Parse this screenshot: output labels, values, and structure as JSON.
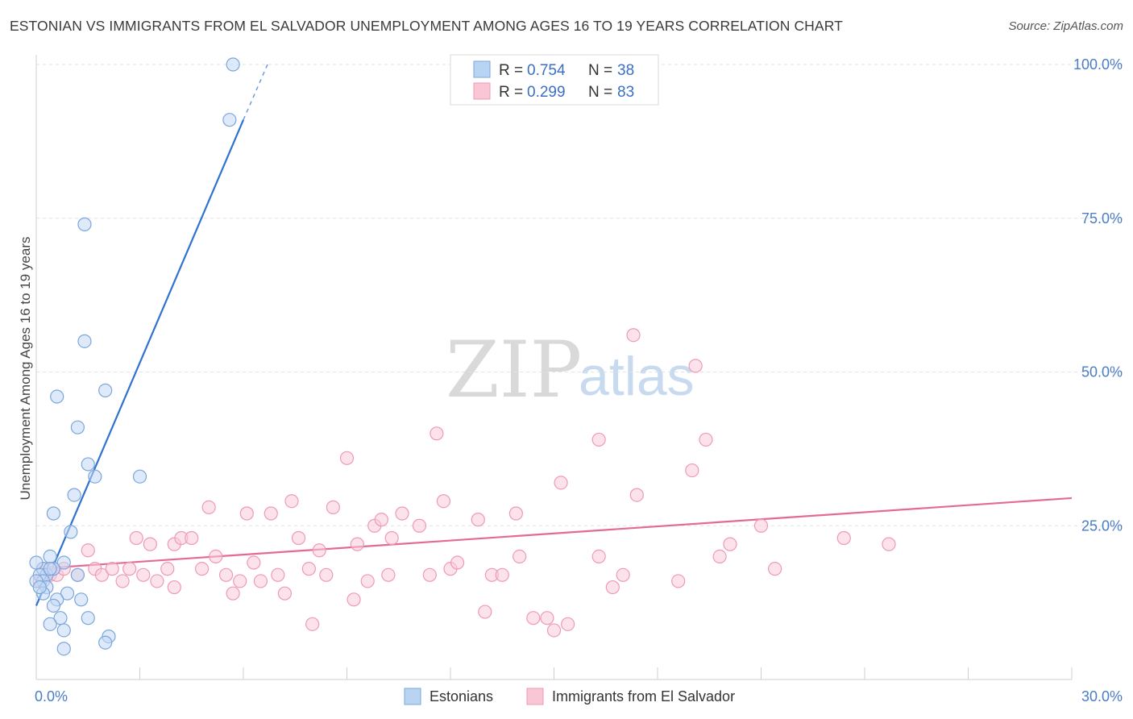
{
  "title": "ESTONIAN VS IMMIGRANTS FROM EL SALVADOR UNEMPLOYMENT AMONG AGES 16 TO 19 YEARS CORRELATION CHART",
  "source": "Source: ZipAtlas.com",
  "watermark": {
    "zip": "ZIP",
    "atlas": "atlas"
  },
  "legend": {
    "r_label": "R = ",
    "n_label": "N = ",
    "rows": [
      {
        "r": "0.754",
        "n": "38",
        "fill": "#b9d3f2",
        "stroke": "#7aa6dd"
      },
      {
        "r": "0.299",
        "n": "83",
        "fill": "#f9c6d6",
        "stroke": "#ee9ab5"
      }
    ]
  },
  "bottom_legend": [
    "Estonians",
    "Immigrants from El Salvador"
  ],
  "chart_data": {
    "type": "scatter",
    "xlabel": "",
    "ylabel": "Unemployment Among Ages 16 to 19 years",
    "xlim": [
      0,
      30
    ],
    "ylim": [
      0,
      100
    ],
    "x_tick_labels": [
      "0.0%",
      "30.0%"
    ],
    "y_ticks": [
      25,
      50,
      75,
      100
    ],
    "y_tick_labels": [
      "25.0%",
      "50.0%",
      "75.0%",
      "100.0%"
    ],
    "grid": true,
    "legend_position": "top-center",
    "series": [
      {
        "name": "Estonians",
        "color": "#7aa6dd",
        "fill": "#c3d9f4",
        "line_color": "#2f72cf",
        "trend": {
          "x0": 0.0,
          "y0": 12.0,
          "x1": 6.0,
          "y1": 91.0,
          "dash_x1": 6.7,
          "dash_y1": 100.0
        },
        "points": [
          [
            5.7,
            100
          ],
          [
            5.6,
            91
          ],
          [
            1.4,
            74
          ],
          [
            1.4,
            55
          ],
          [
            0.6,
            46
          ],
          [
            2.0,
            47
          ],
          [
            1.2,
            41
          ],
          [
            3.0,
            33
          ],
          [
            1.5,
            35
          ],
          [
            1.7,
            33
          ],
          [
            1.1,
            30
          ],
          [
            0.5,
            27
          ],
          [
            1.0,
            24
          ],
          [
            0.4,
            20
          ],
          [
            0.8,
            19
          ],
          [
            0.2,
            18
          ],
          [
            0.3,
            17
          ],
          [
            0.1,
            17
          ],
          [
            0.2,
            16
          ],
          [
            0.0,
            19
          ],
          [
            0.0,
            16
          ],
          [
            1.2,
            17
          ],
          [
            0.5,
            18
          ],
          [
            0.3,
            15
          ],
          [
            0.9,
            14
          ],
          [
            0.2,
            14
          ],
          [
            0.6,
            13
          ],
          [
            1.3,
            13
          ],
          [
            0.5,
            12
          ],
          [
            0.7,
            10
          ],
          [
            0.4,
            9
          ],
          [
            1.5,
            10
          ],
          [
            0.8,
            8
          ],
          [
            2.1,
            7
          ],
          [
            2.0,
            6
          ],
          [
            0.8,
            5
          ],
          [
            0.1,
            15
          ],
          [
            0.4,
            18
          ]
        ]
      },
      {
        "name": "Immigrants from El Salvador",
        "color": "#ee9ab5",
        "fill": "#f9cbda",
        "line_color": "#e46a95",
        "trend": {
          "x0": 0.0,
          "y0": 18.0,
          "x1": 30.0,
          "y1": 29.5
        },
        "points": [
          [
            0.2,
            18
          ],
          [
            0.4,
            17
          ],
          [
            0.6,
            17
          ],
          [
            0.8,
            18
          ],
          [
            1.2,
            17
          ],
          [
            1.5,
            21
          ],
          [
            1.7,
            18
          ],
          [
            1.9,
            17
          ],
          [
            2.2,
            18
          ],
          [
            2.5,
            16
          ],
          [
            2.7,
            18
          ],
          [
            2.9,
            23
          ],
          [
            3.1,
            17
          ],
          [
            3.3,
            22
          ],
          [
            3.5,
            16
          ],
          [
            3.8,
            18
          ],
          [
            4.0,
            15
          ],
          [
            4.0,
            22
          ],
          [
            4.2,
            23
          ],
          [
            4.5,
            23
          ],
          [
            4.8,
            18
          ],
          [
            5.0,
            28
          ],
          [
            5.2,
            20
          ],
          [
            5.5,
            17
          ],
          [
            5.7,
            14
          ],
          [
            5.9,
            16
          ],
          [
            6.1,
            27
          ],
          [
            6.3,
            19
          ],
          [
            6.5,
            16
          ],
          [
            6.8,
            27
          ],
          [
            7.0,
            17
          ],
          [
            7.2,
            14
          ],
          [
            7.4,
            29
          ],
          [
            7.6,
            23
          ],
          [
            7.9,
            18
          ],
          [
            8.0,
            9
          ],
          [
            8.2,
            21
          ],
          [
            8.4,
            17
          ],
          [
            8.6,
            28
          ],
          [
            9.0,
            36
          ],
          [
            9.2,
            13
          ],
          [
            9.3,
            22
          ],
          [
            9.6,
            16
          ],
          [
            9.8,
            25
          ],
          [
            10.0,
            26
          ],
          [
            10.2,
            17
          ],
          [
            10.3,
            23
          ],
          [
            10.6,
            27
          ],
          [
            11.1,
            25
          ],
          [
            11.4,
            17
          ],
          [
            11.6,
            40
          ],
          [
            11.8,
            29
          ],
          [
            12.0,
            18
          ],
          [
            12.2,
            19
          ],
          [
            12.8,
            26
          ],
          [
            13.0,
            11
          ],
          [
            13.2,
            17
          ],
          [
            13.5,
            17
          ],
          [
            13.9,
            27
          ],
          [
            14.0,
            20
          ],
          [
            14.4,
            10
          ],
          [
            14.8,
            10
          ],
          [
            15.0,
            8
          ],
          [
            15.2,
            32
          ],
          [
            15.4,
            9
          ],
          [
            16.3,
            20
          ],
          [
            16.3,
            39
          ],
          [
            16.7,
            15
          ],
          [
            17.0,
            17
          ],
          [
            17.3,
            56
          ],
          [
            17.4,
            30
          ],
          [
            18.6,
            16
          ],
          [
            19.0,
            34
          ],
          [
            19.1,
            51
          ],
          [
            19.4,
            39
          ],
          [
            19.8,
            20
          ],
          [
            20.1,
            22
          ],
          [
            21.0,
            25
          ],
          [
            21.4,
            18
          ],
          [
            23.4,
            23
          ],
          [
            24.7,
            22
          ],
          [
            0.1,
            16
          ],
          [
            0.5,
            18
          ]
        ]
      }
    ]
  }
}
